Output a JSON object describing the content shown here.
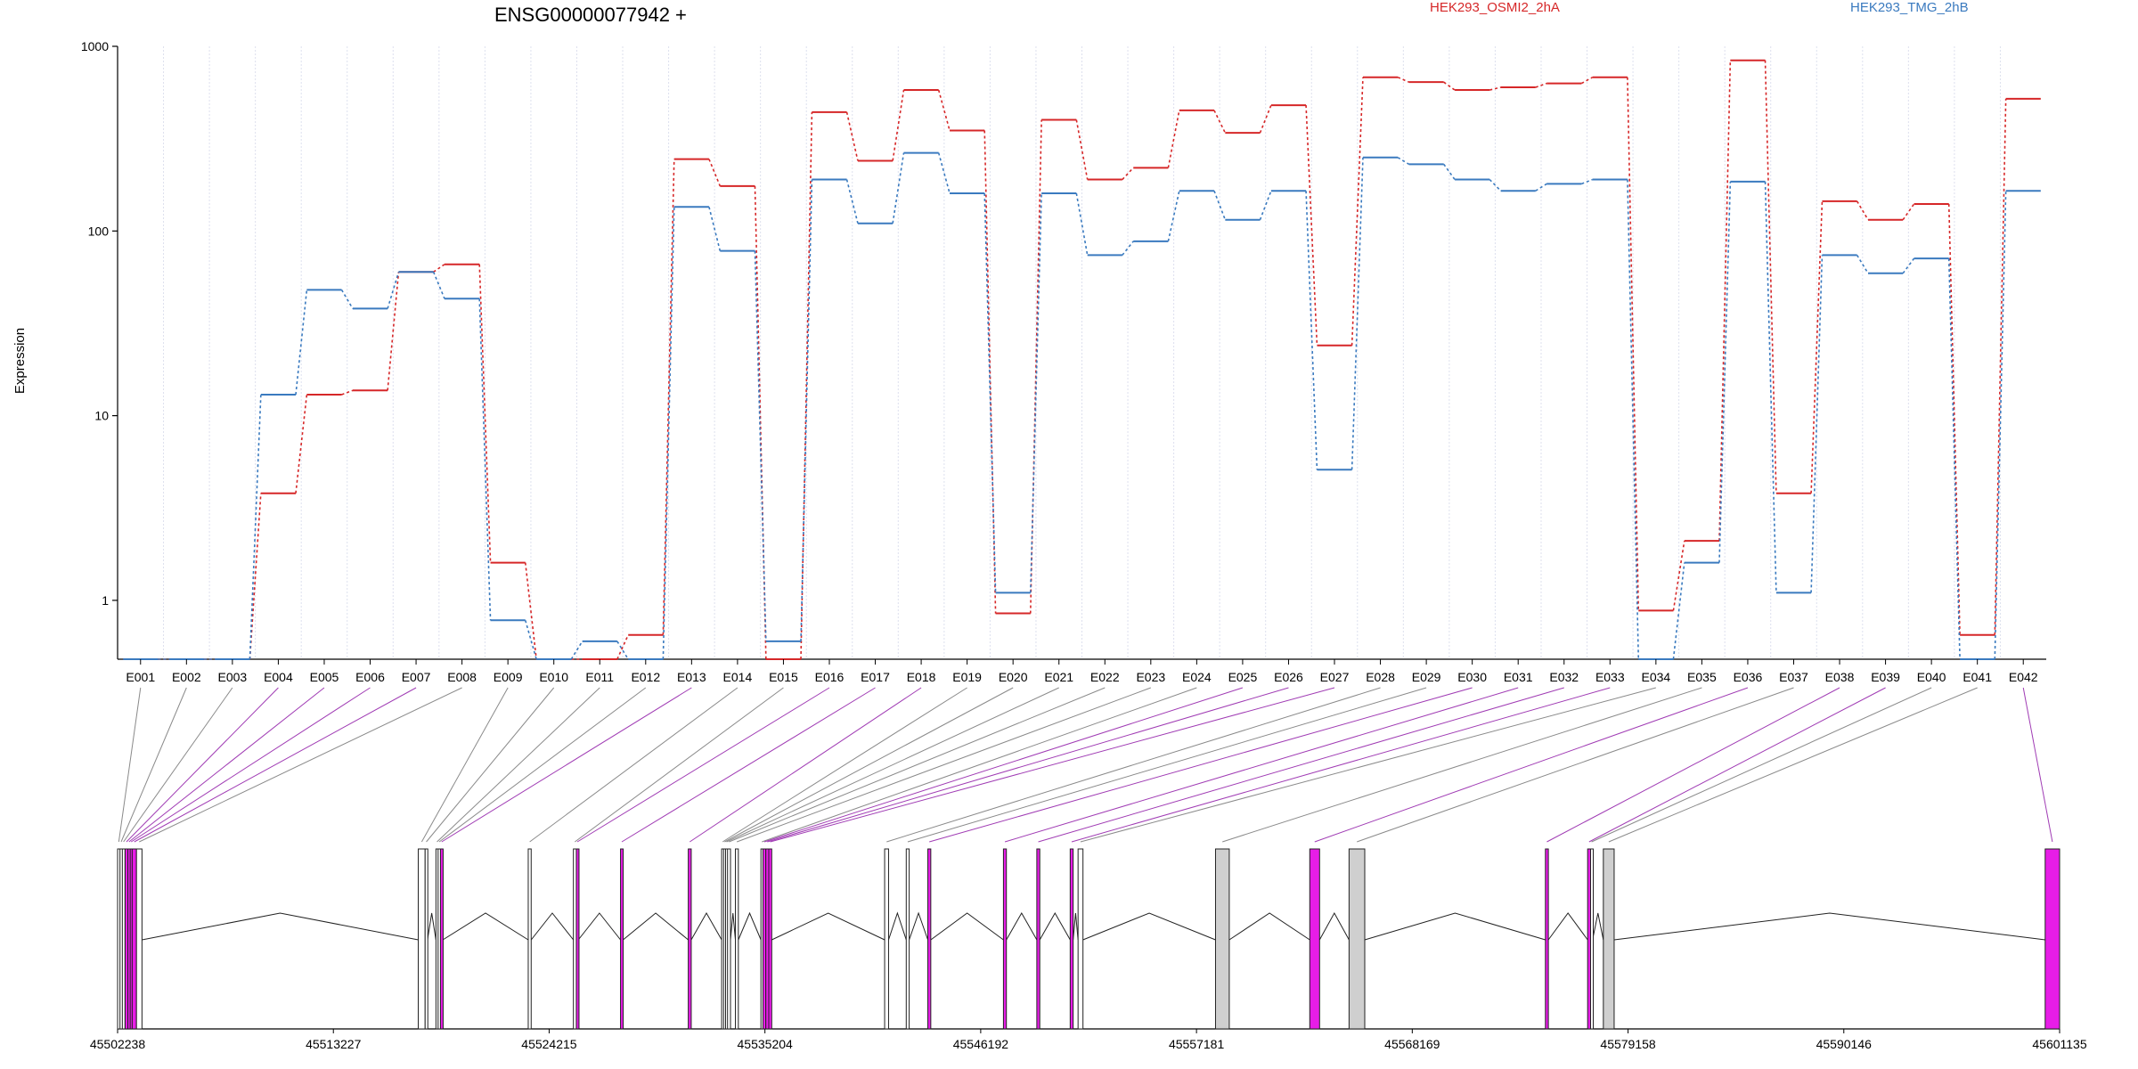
{
  "chart_data": {
    "type": "line",
    "title": "ENSG00000077942 +",
    "ylabel": "Expression",
    "yscale": "log",
    "ylim": [
      0.48,
      1000
    ],
    "yticks": [
      1,
      10,
      100,
      1000
    ],
    "ytick_labels": [
      "1",
      "10",
      "100",
      "1000"
    ],
    "grid": "vertical dotted per exon",
    "legend_position": "top-right",
    "categories": [
      "E001",
      "E002",
      "E003",
      "E004",
      "E005",
      "E006",
      "E007",
      "E008",
      "E009",
      "E010",
      "E011",
      "E012",
      "E013",
      "E014",
      "E015",
      "E016",
      "E017",
      "E018",
      "E019",
      "E020",
      "E021",
      "E022",
      "E023",
      "E024",
      "E025",
      "E026",
      "E027",
      "E028",
      "E029",
      "E030",
      "E031",
      "E032",
      "E033",
      "E034",
      "E035",
      "E036",
      "E037",
      "E038",
      "E039",
      "E040",
      "E041",
      "E042"
    ],
    "series": [
      {
        "name": "HEK293_OSMI2_2hA",
        "color": "#d62728",
        "values": [
          0.48,
          0.48,
          0.48,
          3.8,
          13,
          13.7,
          60,
          66,
          1.6,
          0.48,
          0.48,
          0.65,
          245,
          175,
          0.48,
          440,
          240,
          580,
          350,
          0.85,
          400,
          190,
          220,
          450,
          340,
          480,
          24,
          680,
          640,
          580,
          600,
          630,
          680,
          0.88,
          2.1,
          840,
          3.8,
          145,
          115,
          140,
          0.65,
          520
        ]
      },
      {
        "name": "HEK293_TMG_2hB",
        "color": "#3a7abf",
        "values": [
          0.48,
          0.48,
          0.48,
          13,
          48,
          38,
          60,
          43,
          0.78,
          0.48,
          0.6,
          0.48,
          135,
          78,
          0.6,
          190,
          110,
          265,
          160,
          1.1,
          160,
          74,
          88,
          165,
          115,
          165,
          5.1,
          250,
          230,
          190,
          165,
          180,
          190,
          0.48,
          1.6,
          185,
          1.1,
          74,
          59,
          71,
          0.48,
          165
        ]
      }
    ],
    "gene_model": {
      "positions": [
        "45502238",
        "45513227",
        "45524215",
        "45535204",
        "45546192",
        "45557181",
        "45568169",
        "45579158",
        "45590146",
        "45601135"
      ],
      "highlight_color": "#e71de7",
      "exons": [
        {
          "id": "E001",
          "start": 45502238,
          "end": 45502360,
          "significant": false
        },
        {
          "id": "E002",
          "start": 45502360,
          "end": 45502480,
          "significant": false
        },
        {
          "id": "E003",
          "start": 45502480,
          "end": 45502600,
          "significant": false
        },
        {
          "id": "E004",
          "start": 45502620,
          "end": 45502760,
          "significant": true
        },
        {
          "id": "E005",
          "start": 45502760,
          "end": 45502880,
          "significant": true
        },
        {
          "id": "E006",
          "start": 45502880,
          "end": 45502980,
          "significant": true
        },
        {
          "id": "E007",
          "start": 45502980,
          "end": 45503200,
          "significant": true
        },
        {
          "id": "E008",
          "start": 45503200,
          "end": 45503480,
          "significant": false
        },
        {
          "id": "E009",
          "start": 45517550,
          "end": 45517900,
          "significant": false
        },
        {
          "id": "E010",
          "start": 45517900,
          "end": 45518020,
          "significant": false
        },
        {
          "id": "E011",
          "start": 45518450,
          "end": 45518560,
          "significant": false
        },
        {
          "id": "E012",
          "start": 45518560,
          "end": 45518680,
          "significant": false
        },
        {
          "id": "E013",
          "start": 45518680,
          "end": 45518800,
          "significant": true
        },
        {
          "id": "E014",
          "start": 45523150,
          "end": 45523300,
          "significant": false
        },
        {
          "id": "E015",
          "start": 45525450,
          "end": 45525600,
          "significant": false
        },
        {
          "id": "E016",
          "start": 45525600,
          "end": 45525700,
          "significant": true
        },
        {
          "id": "E017",
          "start": 45527850,
          "end": 45527980,
          "significant": true
        },
        {
          "id": "E018",
          "start": 45531300,
          "end": 45531450,
          "significant": true
        },
        {
          "id": "E019",
          "start": 45533000,
          "end": 45533100,
          "significant": false
        },
        {
          "id": "E020",
          "start": 45533100,
          "end": 45533200,
          "significant": false
        },
        {
          "id": "E021",
          "start": 45533200,
          "end": 45533300,
          "significant": false
        },
        {
          "id": "E022",
          "start": 45533300,
          "end": 45533450,
          "significant": false
        },
        {
          "id": "E023",
          "start": 45533700,
          "end": 45533850,
          "significant": false
        },
        {
          "id": "E024",
          "start": 45535000,
          "end": 45535100,
          "significant": false
        },
        {
          "id": "E025",
          "start": 45535100,
          "end": 45535250,
          "significant": true
        },
        {
          "id": "E026",
          "start": 45535250,
          "end": 45535400,
          "significant": true
        },
        {
          "id": "E027",
          "start": 45535400,
          "end": 45535550,
          "significant": true
        },
        {
          "id": "E028",
          "start": 45541300,
          "end": 45541500,
          "significant": false
        },
        {
          "id": "E029",
          "start": 45542400,
          "end": 45542550,
          "significant": false
        },
        {
          "id": "E030",
          "start": 45543500,
          "end": 45543650,
          "significant": true
        },
        {
          "id": "E031",
          "start": 45547350,
          "end": 45547500,
          "significant": true
        },
        {
          "id": "E032",
          "start": 45549050,
          "end": 45549200,
          "significant": true
        },
        {
          "id": "E033",
          "start": 45550750,
          "end": 45550900,
          "significant": true
        },
        {
          "id": "E034",
          "start": 45551150,
          "end": 45551400,
          "significant": false
        },
        {
          "id": "E035",
          "start": 45558150,
          "end": 45558850,
          "significant": false
        },
        {
          "id": "E036",
          "start": 45562950,
          "end": 45563450,
          "significant": true
        },
        {
          "id": "E037",
          "start": 45564950,
          "end": 45565750,
          "significant": false
        },
        {
          "id": "E038",
          "start": 45574950,
          "end": 45575100,
          "significant": true
        },
        {
          "id": "E039",
          "start": 45577100,
          "end": 45577250,
          "significant": true
        },
        {
          "id": "E040",
          "start": 45577250,
          "end": 45577350,
          "significant": false
        },
        {
          "id": "E041",
          "start": 45577900,
          "end": 45578450,
          "significant": false
        },
        {
          "id": "E042",
          "start": 45600400,
          "end": 45601135,
          "significant": true
        }
      ]
    }
  }
}
